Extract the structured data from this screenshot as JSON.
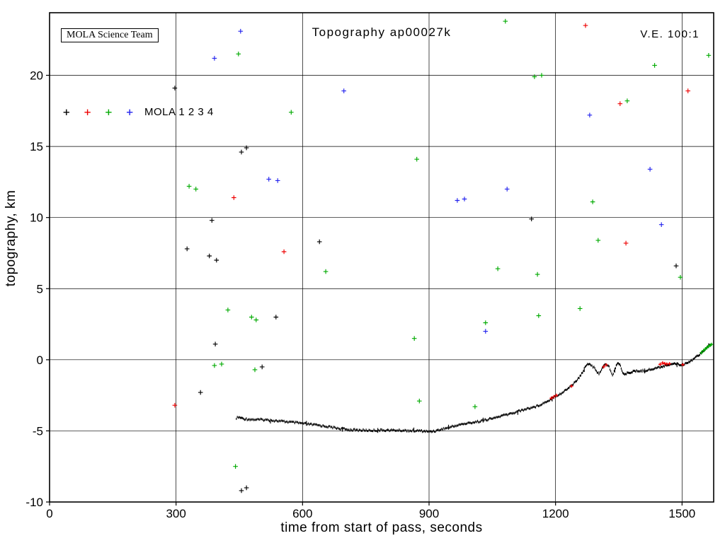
{
  "chart_data": {
    "type": "scatter",
    "title": "Topography ap00027k",
    "xlabel": "time from start of pass, seconds",
    "ylabel": "topography, km",
    "xlim": [
      0,
      1575
    ],
    "ylim": [
      -10,
      24.4
    ],
    "xticks": [
      0,
      300,
      600,
      900,
      1200,
      1500
    ],
    "yticks": [
      -10,
      -5,
      0,
      5,
      10,
      15,
      20
    ],
    "grid": true,
    "annotations": [
      {
        "text": "MOLA Science Team",
        "position": "top-left-box"
      },
      {
        "text": "V.E. 100:1",
        "position": "top-right"
      }
    ],
    "legend": {
      "label": "MOLA 1 2 3 4",
      "entries": [
        "MOLA 1",
        "MOLA 2",
        "MOLA 3",
        "MOLA 4"
      ],
      "colors": [
        "#000000",
        "#ee0000",
        "#00aa00",
        "#2222ee"
      ],
      "marker_x": [
        40,
        90,
        140,
        190
      ],
      "marker_y": 17.4,
      "position": "inside-upper-left"
    },
    "profile_track": {
      "name": "ground-track topography profile",
      "color": "#000000",
      "points": [
        [
          443,
          -4.1
        ],
        [
          450,
          -4.05
        ],
        [
          460,
          -4.15
        ],
        [
          480,
          -4.2
        ],
        [
          510,
          -4.22
        ],
        [
          540,
          -4.3
        ],
        [
          570,
          -4.38
        ],
        [
          600,
          -4.48
        ],
        [
          630,
          -4.58
        ],
        [
          660,
          -4.7
        ],
        [
          690,
          -4.85
        ],
        [
          710,
          -4.92
        ],
        [
          730,
          -4.95
        ],
        [
          760,
          -4.97
        ],
        [
          790,
          -4.95
        ],
        [
          820,
          -4.96
        ],
        [
          850,
          -4.98
        ],
        [
          880,
          -5.0
        ],
        [
          900,
          -5.05
        ],
        [
          915,
          -5.0
        ],
        [
          935,
          -4.85
        ],
        [
          955,
          -4.7
        ],
        [
          975,
          -4.55
        ],
        [
          995,
          -4.45
        ],
        [
          1015,
          -4.35
        ],
        [
          1035,
          -4.22
        ],
        [
          1055,
          -4.1
        ],
        [
          1075,
          -3.92
        ],
        [
          1095,
          -3.78
        ],
        [
          1115,
          -3.6
        ],
        [
          1135,
          -3.42
        ],
        [
          1155,
          -3.28
        ],
        [
          1175,
          -3.0
        ],
        [
          1190,
          -2.75
        ],
        [
          1200,
          -2.55
        ],
        [
          1215,
          -2.35
        ],
        [
          1230,
          -2.0
        ],
        [
          1242,
          -1.7
        ],
        [
          1252,
          -1.4
        ],
        [
          1260,
          -1.1
        ],
        [
          1266,
          -0.75
        ],
        [
          1272,
          -0.4
        ],
        [
          1278,
          -0.28
        ],
        [
          1284,
          -0.35
        ],
        [
          1291,
          -0.55
        ],
        [
          1297,
          -0.85
        ],
        [
          1303,
          -0.95
        ],
        [
          1309,
          -0.7
        ],
        [
          1314,
          -0.45
        ],
        [
          1319,
          -0.32
        ],
        [
          1325,
          -0.38
        ],
        [
          1331,
          -0.8
        ],
        [
          1335,
          -1.1
        ],
        [
          1339,
          -0.85
        ],
        [
          1344,
          -0.4
        ],
        [
          1349,
          -0.22
        ],
        [
          1354,
          -0.4
        ],
        [
          1359,
          -0.9
        ],
        [
          1364,
          -1.05
        ],
        [
          1370,
          -0.95
        ],
        [
          1380,
          -0.85
        ],
        [
          1392,
          -0.8
        ],
        [
          1405,
          -0.78
        ],
        [
          1420,
          -0.72
        ],
        [
          1435,
          -0.62
        ],
        [
          1450,
          -0.5
        ],
        [
          1462,
          -0.4
        ],
        [
          1472,
          -0.3
        ],
        [
          1480,
          -0.26
        ],
        [
          1490,
          -0.32
        ],
        [
          1500,
          -0.36
        ],
        [
          1510,
          -0.24
        ],
        [
          1520,
          -0.08
        ],
        [
          1530,
          0.12
        ],
        [
          1540,
          0.35
        ],
        [
          1548,
          0.55
        ],
        [
          1556,
          0.78
        ],
        [
          1563,
          0.95
        ],
        [
          1569,
          1.05
        ]
      ]
    },
    "overlay_clusters": [
      {
        "name": "MOLA 2 on-track returns",
        "color": "#ee0000",
        "points": [
          [
            1190,
            -2.7
          ],
          [
            1196,
            -2.6
          ],
          [
            1202,
            -2.5
          ],
          [
            1238,
            -1.85
          ],
          [
            1314,
            -0.5
          ],
          [
            1320,
            -0.36
          ],
          [
            1448,
            -0.32
          ],
          [
            1454,
            -0.22
          ],
          [
            1459,
            -0.27
          ],
          [
            1464,
            -0.3
          ],
          [
            1470,
            -0.28
          ],
          [
            1502,
            -0.34
          ]
        ]
      },
      {
        "name": "MOLA 3 on-track returns",
        "color": "#00aa00",
        "points": [
          [
            1546,
            0.5
          ],
          [
            1551,
            0.65
          ],
          [
            1555,
            0.75
          ],
          [
            1559,
            0.85
          ],
          [
            1563,
            0.95
          ],
          [
            1567,
            1.02
          ],
          [
            1570,
            1.08
          ]
        ]
      }
    ],
    "noise_points": [
      {
        "name": "MOLA 1",
        "color": "#000000",
        "points": [
          [
            297,
            19.1
          ],
          [
            467,
            14.9
          ],
          [
            455,
            14.6
          ],
          [
            326,
            7.8
          ],
          [
            379,
            7.3
          ],
          [
            396,
            7.0
          ],
          [
            640,
            8.3
          ],
          [
            385,
            9.8
          ],
          [
            1143,
            9.9
          ],
          [
            1486,
            6.6
          ],
          [
            537,
            3.0
          ],
          [
            393,
            1.1
          ],
          [
            504,
            -0.5
          ],
          [
            358,
            -2.3
          ],
          [
            455,
            -9.2
          ],
          [
            467,
            -9.0
          ]
        ]
      },
      {
        "name": "MOLA 2",
        "color": "#ee0000",
        "points": [
          [
            1271,
            23.5
          ],
          [
            1514,
            18.9
          ],
          [
            1353,
            18.0
          ],
          [
            437,
            11.4
          ],
          [
            556,
            7.6
          ],
          [
            1367,
            8.2
          ],
          [
            297,
            -3.2
          ]
        ]
      },
      {
        "name": "MOLA 3",
        "color": "#00aa00",
        "points": [
          [
            448,
            21.5
          ],
          [
            1081,
            23.8
          ],
          [
            1435,
            20.7
          ],
          [
            1563,
            21.4
          ],
          [
            573,
            17.4
          ],
          [
            1150,
            19.9
          ],
          [
            1167,
            20.0
          ],
          [
            1370,
            18.2
          ],
          [
            871,
            14.1
          ],
          [
            347,
            12.0
          ],
          [
            331,
            12.2
          ],
          [
            1288,
            11.1
          ],
          [
            1301,
            8.4
          ],
          [
            655,
            6.2
          ],
          [
            1063,
            6.4
          ],
          [
            1157,
            6.0
          ],
          [
            1496,
            5.8
          ],
          [
            423,
            3.5
          ],
          [
            479,
            3.0
          ],
          [
            490,
            2.8
          ],
          [
            1034,
            2.6
          ],
          [
            1160,
            3.1
          ],
          [
            1258,
            3.6
          ],
          [
            865,
            1.5
          ],
          [
            391,
            -0.4
          ],
          [
            408,
            -0.3
          ],
          [
            487,
            -0.7
          ],
          [
            877,
            -2.9
          ],
          [
            1009,
            -3.3
          ],
          [
            441,
            -7.5
          ]
        ]
      },
      {
        "name": "MOLA 4",
        "color": "#2222ee",
        "points": [
          [
            453,
            23.1
          ],
          [
            391,
            21.2
          ],
          [
            698,
            18.9
          ],
          [
            1281,
            17.2
          ],
          [
            520,
            12.7
          ],
          [
            541,
            12.6
          ],
          [
            1085,
            12.0
          ],
          [
            1424,
            13.4
          ],
          [
            967,
            11.2
          ],
          [
            984,
            11.3
          ],
          [
            1451,
            9.5
          ],
          [
            1034,
            2.0
          ]
        ]
      }
    ]
  }
}
